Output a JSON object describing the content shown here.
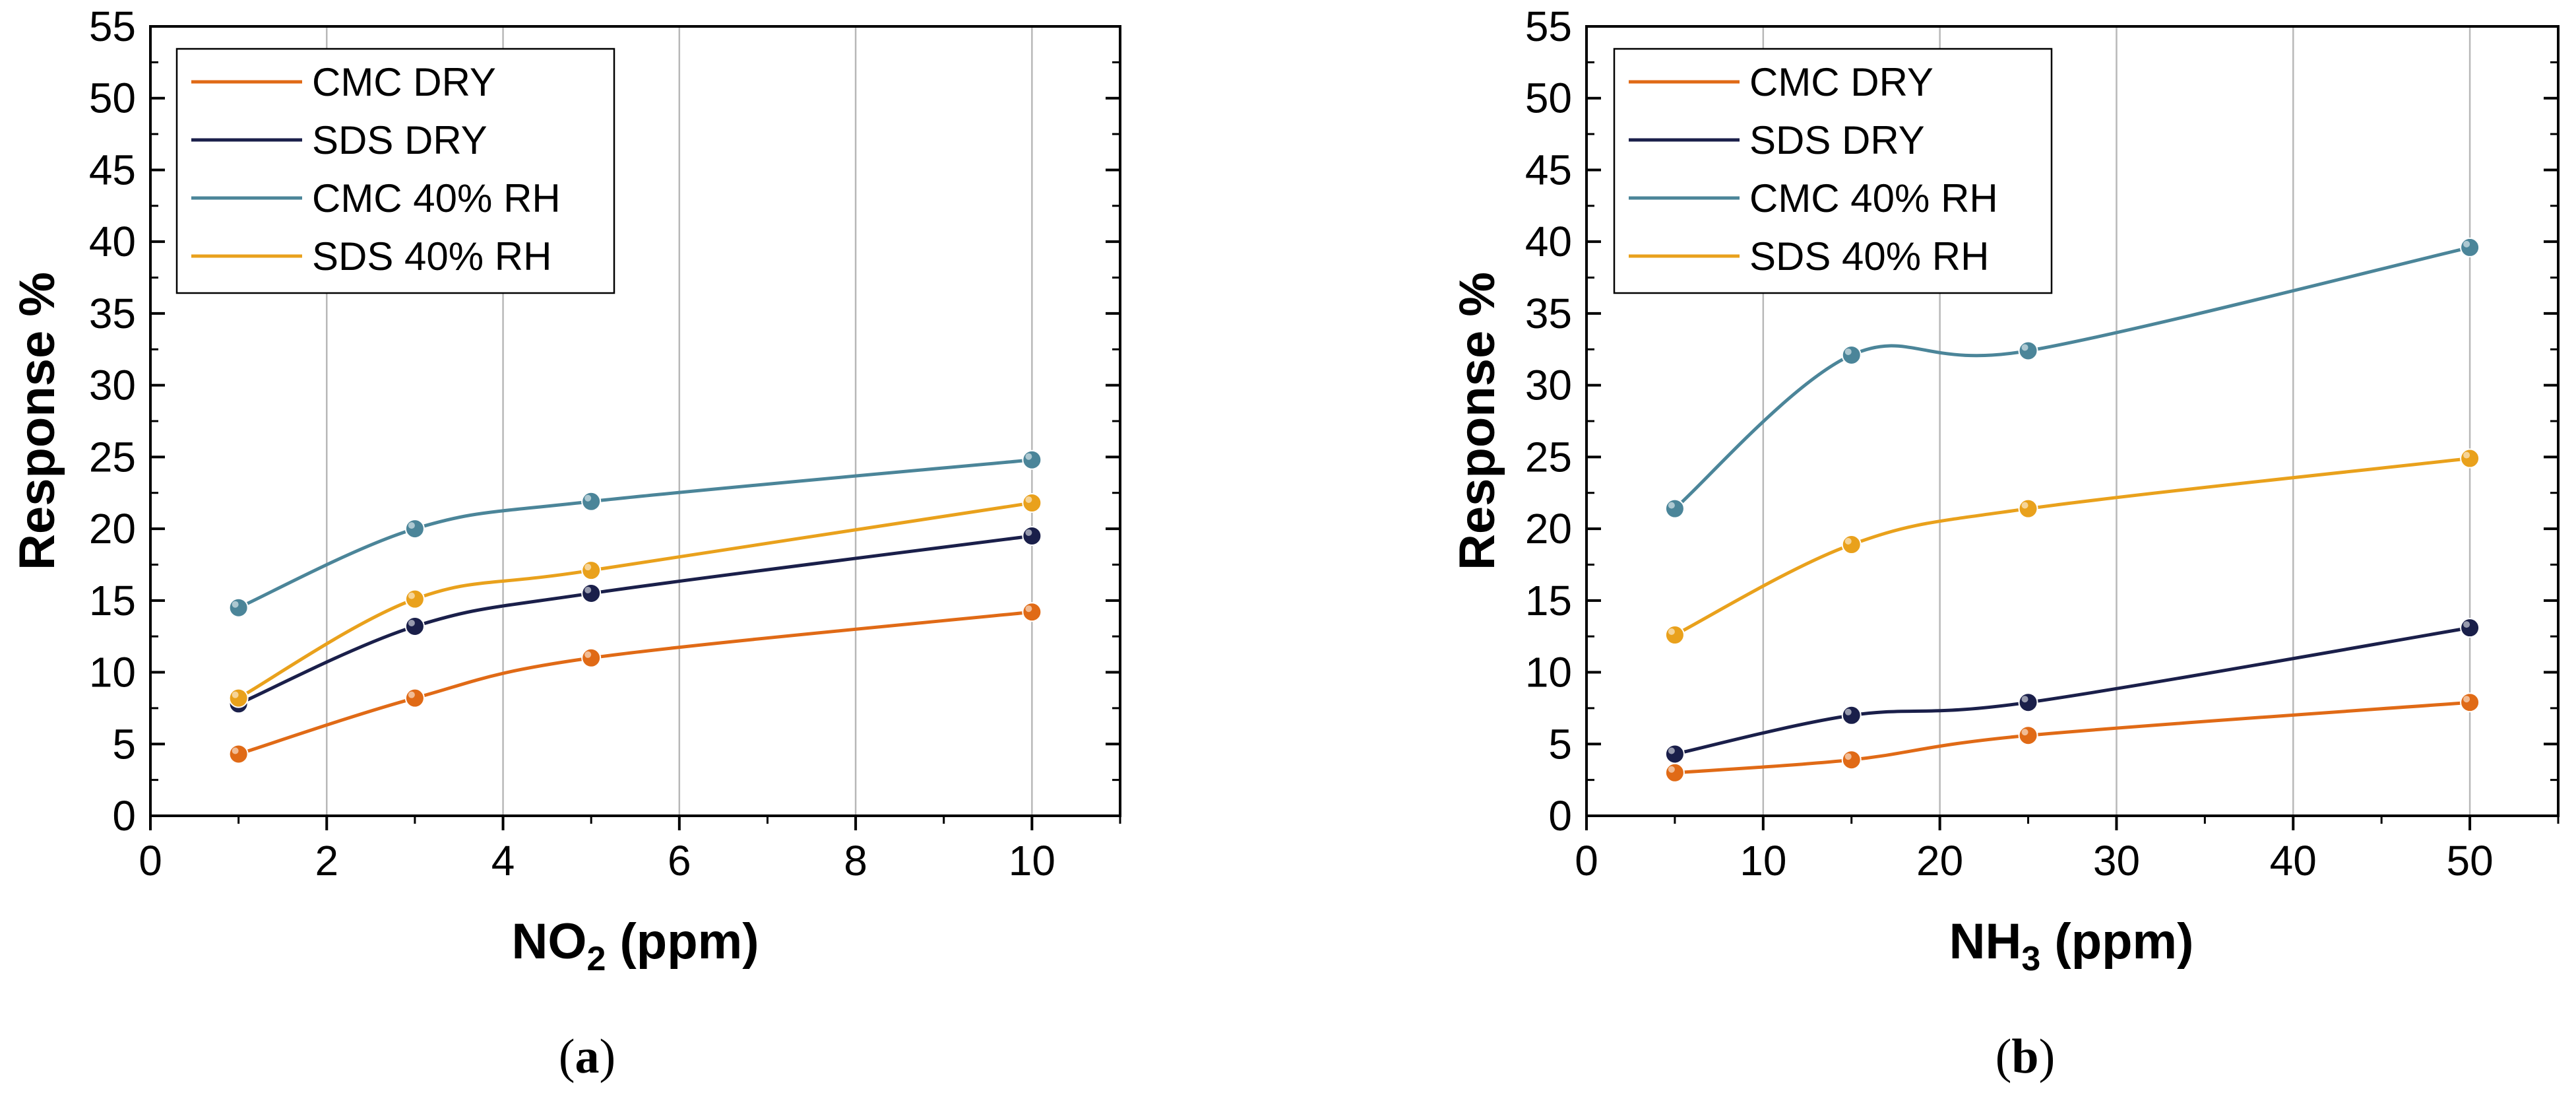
{
  "chart_data": [
    {
      "type": "scatter",
      "id": "a",
      "caption_letter": "a",
      "ylabel": "Response %",
      "xlabel_main": "NO",
      "xlabel_sub": "2",
      "xlabel_unit": " (ppm)",
      "xlim": [
        0,
        11
      ],
      "ylim": [
        0,
        55
      ],
      "xticks": [
        0,
        2,
        4,
        6,
        8,
        10
      ],
      "yticks": [
        0,
        5,
        10,
        15,
        20,
        25,
        30,
        35,
        40,
        45,
        50,
        55
      ],
      "grid": "vertical",
      "legend_position": "top-left",
      "series": [
        {
          "name": "CMC DRY",
          "color": "#e06a16",
          "x": [
            1,
            3,
            5,
            10
          ],
          "values": [
            4.3,
            8.2,
            11.0,
            14.2
          ]
        },
        {
          "name": "SDS DRY",
          "color": "#1a1f4a",
          "x": [
            1,
            3,
            5,
            10
          ],
          "values": [
            7.8,
            13.2,
            15.5,
            19.5
          ]
        },
        {
          "name": "CMC 40% RH",
          "color": "#4b8599",
          "x": [
            1,
            3,
            5,
            10
          ],
          "values": [
            14.5,
            20.0,
            21.9,
            24.8
          ]
        },
        {
          "name": "SDS 40% RH",
          "color": "#e9a11c",
          "x": [
            1,
            3,
            5,
            10
          ],
          "values": [
            8.2,
            15.1,
            17.1,
            21.8
          ]
        }
      ]
    },
    {
      "type": "scatter",
      "id": "b",
      "caption_letter": "b",
      "ylabel": "Response %",
      "xlabel_main": "NH",
      "xlabel_sub": "3",
      "xlabel_unit": " (ppm)",
      "xlim": [
        0,
        55
      ],
      "ylim": [
        0,
        55
      ],
      "xticks": [
        0,
        10,
        20,
        30,
        40,
        50
      ],
      "yticks": [
        0,
        5,
        10,
        15,
        20,
        25,
        30,
        35,
        40,
        45,
        50,
        55
      ],
      "grid": "vertical",
      "legend_position": "top-left",
      "series": [
        {
          "name": "CMC DRY",
          "color": "#e06a16",
          "x": [
            5,
            15,
            25,
            50
          ],
          "values": [
            3.0,
            3.9,
            5.6,
            7.9
          ]
        },
        {
          "name": "SDS DRY",
          "color": "#1a1f4a",
          "x": [
            5,
            15,
            25,
            50
          ],
          "values": [
            4.3,
            7.0,
            7.9,
            13.1
          ]
        },
        {
          "name": "CMC 40% RH",
          "color": "#4b8599",
          "x": [
            5,
            15,
            25,
            50
          ],
          "values": [
            21.4,
            32.1,
            32.4,
            39.6
          ]
        },
        {
          "name": "SDS 40% RH",
          "color": "#e9a11c",
          "x": [
            5,
            15,
            25,
            50
          ],
          "values": [
            12.6,
            18.9,
            21.4,
            24.9
          ]
        }
      ]
    }
  ]
}
